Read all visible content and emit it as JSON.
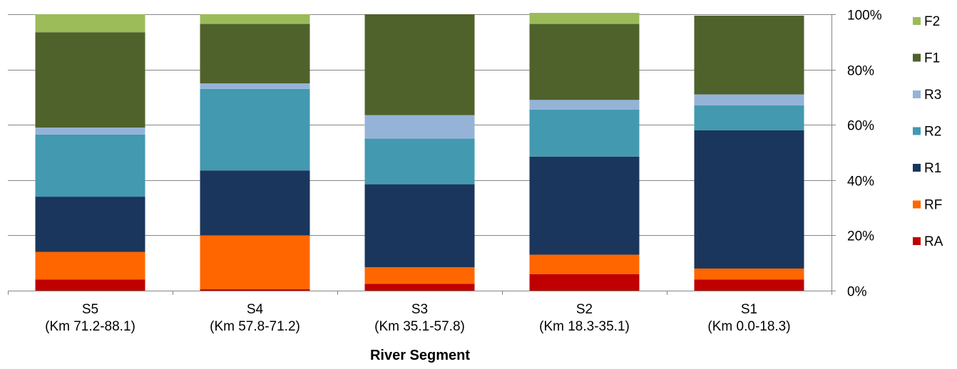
{
  "chart_data": {
    "type": "bar",
    "stacked": true,
    "percent_stacked": true,
    "title": "",
    "xlabel": "River Segment",
    "ylabel": "",
    "ylim": [
      0,
      100
    ],
    "y_axis_position": "right",
    "y_ticks": [
      "0%",
      "20%",
      "40%",
      "60%",
      "80%",
      "100%"
    ],
    "grid": "horizontal",
    "legend_position": "right",
    "categories": [
      [
        "S5",
        "(Km 71.2-88.1)"
      ],
      [
        "S4",
        "(Km 57.8-71.2)"
      ],
      [
        "S3",
        "(Km 35.1-57.8)"
      ],
      [
        "S2",
        "(Km 18.3-35.1)"
      ],
      [
        "S1",
        "(Km 0.0-18.3)"
      ]
    ],
    "series": [
      {
        "name": "RA",
        "color": "#C00000",
        "values": [
          4,
          0.5,
          2.5,
          6,
          4
        ]
      },
      {
        "name": "RF",
        "color": "#FF6600",
        "values": [
          10,
          19.5,
          6,
          7,
          4
        ]
      },
      {
        "name": "R1",
        "color": "#1B365D",
        "values": [
          20,
          23.5,
          30,
          35.5,
          50
        ]
      },
      {
        "name": "R2",
        "color": "#4299B0",
        "values": [
          22.5,
          29.5,
          16.5,
          17,
          9
        ]
      },
      {
        "name": "R3",
        "color": "#95B3D7",
        "values": [
          2.5,
          2,
          8.5,
          3.5,
          4
        ]
      },
      {
        "name": "F1",
        "color": "#4F622B",
        "values": [
          34.5,
          21.5,
          36.5,
          27.5,
          28.5
        ]
      },
      {
        "name": "F2",
        "color": "#9BBB59",
        "values": [
          6.5,
          3.5,
          0,
          4,
          0
        ]
      }
    ]
  }
}
